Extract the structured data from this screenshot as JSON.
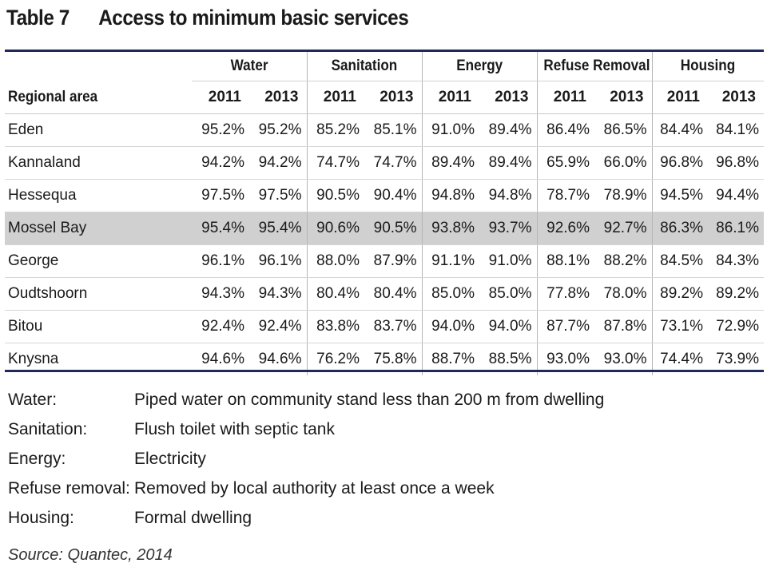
{
  "title": {
    "number": "Table 7",
    "text": "Access to minimum basic services"
  },
  "table": {
    "row_header": "Regional area",
    "groups": [
      "Water",
      "Sanitation",
      "Energy",
      "Refuse Removal",
      "Housing"
    ],
    "years": [
      "2011",
      "2013"
    ],
    "rows": [
      {
        "area": "Eden",
        "values": [
          "95.2%",
          "95.2%",
          "85.2%",
          "85.1%",
          "91.0%",
          "89.4%",
          "86.4%",
          "86.5%",
          "84.4%",
          "84.1%"
        ]
      },
      {
        "area": "Kannaland",
        "values": [
          "94.2%",
          "94.2%",
          "74.7%",
          "74.7%",
          "89.4%",
          "89.4%",
          "65.9%",
          "66.0%",
          "96.8%",
          "96.8%"
        ]
      },
      {
        "area": "Hessequa",
        "values": [
          "97.5%",
          "97.5%",
          "90.5%",
          "90.4%",
          "94.8%",
          "94.8%",
          "78.7%",
          "78.9%",
          "94.5%",
          "94.4%"
        ]
      },
      {
        "area": "Mossel Bay",
        "highlight": true,
        "values": [
          "95.4%",
          "95.4%",
          "90.6%",
          "90.5%",
          "93.8%",
          "93.7%",
          "92.6%",
          "92.7%",
          "86.3%",
          "86.1%"
        ]
      },
      {
        "area": "George",
        "values": [
          "96.1%",
          "96.1%",
          "88.0%",
          "87.9%",
          "91.1%",
          "91.0%",
          "88.1%",
          "88.2%",
          "84.5%",
          "84.3%"
        ]
      },
      {
        "area": "Oudtshoorn",
        "values": [
          "94.3%",
          "94.3%",
          "80.4%",
          "80.4%",
          "85.0%",
          "85.0%",
          "77.8%",
          "78.0%",
          "89.2%",
          "89.2%"
        ]
      },
      {
        "area": "Bitou",
        "values": [
          "92.4%",
          "92.4%",
          "83.8%",
          "83.7%",
          "94.0%",
          "94.0%",
          "87.7%",
          "87.8%",
          "73.1%",
          "72.9%"
        ]
      },
      {
        "area": "Knysna",
        "values": [
          "94.6%",
          "94.6%",
          "76.2%",
          "75.8%",
          "88.7%",
          "88.5%",
          "93.0%",
          "93.0%",
          "74.4%",
          "73.9%"
        ]
      }
    ],
    "highlight_color": "#d0d0d0",
    "rule_color": "#1f2a5a"
  },
  "definitions": [
    {
      "term": "Water:",
      "desc": "Piped water on community stand less than 200 m from dwelling"
    },
    {
      "term": "Sanitation:",
      "desc": "Flush toilet with septic tank"
    },
    {
      "term": "Energy:",
      "desc": "Electricity"
    },
    {
      "term": "Refuse removal:",
      "desc": "Removed by local authority at least once a week"
    },
    {
      "term": "Housing:",
      "desc": "Formal dwelling"
    }
  ],
  "source": "Source: Quantec, 2014"
}
